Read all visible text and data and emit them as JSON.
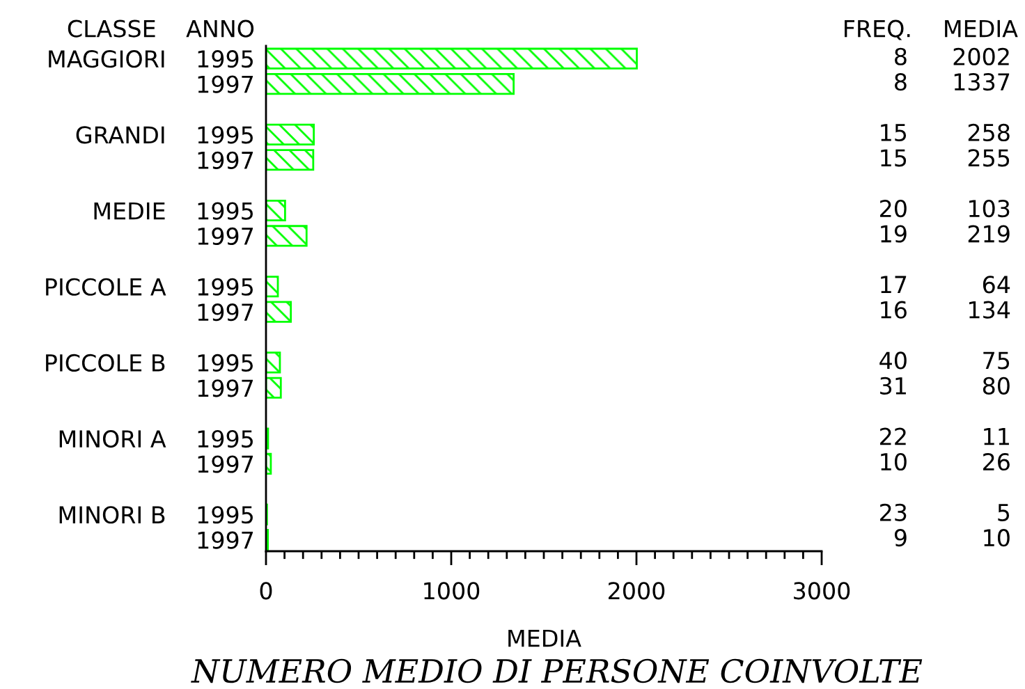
{
  "chart_data": [
    {
      "type": "bar",
      "orientation": "horizontal",
      "title": "NUMERO MEDIO DI PERSONE COINVOLTE",
      "xlabel": "MEDIA",
      "ylabel": "CLASSE ANNO",
      "categories": [
        "MAGGIORI 1995",
        "1997",
        null,
        "GRANDI 1995",
        "1997",
        null,
        "MEDIE 1995",
        "1997",
        null,
        "PICCOLE A 1995",
        "1997",
        null,
        "PICCOLE B 1995",
        "1997",
        null,
        "MINORI A 1995",
        "1997",
        null,
        "MINORI B 1995",
        "1997"
      ],
      "values": [
        2002,
        1337,
        null,
        258,
        255,
        null,
        103,
        219,
        null,
        64,
        134,
        null,
        75,
        80,
        null,
        11,
        26,
        null,
        5,
        10
      ],
      "color": "#00ff00",
      "xlim": [
        0,
        3000
      ],
      "xticks": [
        0,
        1000,
        2000,
        3000
      ],
      "data_labels": true,
      "annotations": [
        "MEDIA"
      ]
    },
    {
      "type": "other",
      "title": "FREQ.",
      "annotations": [
        "8",
        "8",
        "15",
        "15",
        "20",
        "19",
        "17",
        "16",
        "40",
        "31",
        "22",
        "10",
        "23",
        "9"
      ]
    }
  ]
}
